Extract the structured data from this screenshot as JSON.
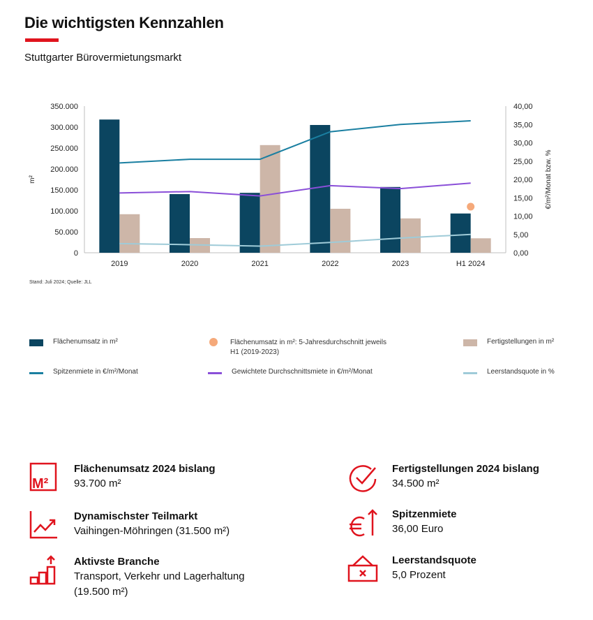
{
  "header": {
    "title": "Die wichtigsten Kennzahlen",
    "subtitle": "Stuttgarter Bürovermietungsmarkt"
  },
  "colors": {
    "accent": "#e0141e",
    "flaechenumsatz": "#0b4560",
    "fertigstellungen": "#cdb6a8",
    "spitzenmiete": "#1a7fa1",
    "durchschnittsmiete": "#8a4fd8",
    "leerstand": "#9fcbd8",
    "avg_dot": "#f5a97a"
  },
  "chart_data": {
    "type": "bar",
    "categories": [
      "2019",
      "2020",
      "2021",
      "2022",
      "2023",
      "H1 2024"
    ],
    "ylabel": "m²",
    "y2label": "€/m²/Monat bzw. %",
    "ylim": [
      0,
      350000
    ],
    "y2lim": [
      0,
      40
    ],
    "yticks": [
      "0",
      "50.000",
      "100.000",
      "150.000",
      "200.000",
      "250.000",
      "300.000",
      "350.000"
    ],
    "y2ticks": [
      "0,00",
      "5,00",
      "10,00",
      "15,00",
      "20,00",
      "25,00",
      "30,00",
      "35,00",
      "40,00"
    ],
    "grid": false,
    "legend_position": "bottom",
    "bars": [
      {
        "name": "Flächenumsatz in m²",
        "values": [
          318000,
          140000,
          143000,
          305000,
          157000,
          93700
        ]
      },
      {
        "name": "Fertigstellungen in m²",
        "values": [
          92000,
          35000,
          257000,
          105000,
          82000,
          34500
        ]
      }
    ],
    "lines": [
      {
        "name": "Spitzenmiete in €/m²/Monat",
        "values": [
          24.5,
          25.5,
          25.5,
          33.0,
          35.0,
          36.0
        ]
      },
      {
        "name": "Gewichtete Durchschnittsmiete in €/m²/Monat",
        "values": [
          16.3,
          16.7,
          15.5,
          18.3,
          17.5,
          19.0
        ]
      },
      {
        "name": "Leerstandsquote in %",
        "values": [
          2.5,
          2.2,
          1.8,
          2.8,
          4.0,
          5.0
        ]
      }
    ],
    "points": [
      {
        "name": "Flächenumsatz in m²: 5-Jahresdurchschnitt jeweils H1 (2019-2023)",
        "category": "H1 2024",
        "value": 110000
      }
    ],
    "source_note": "Stand: Juli 2024; Quelle: JLL"
  },
  "legend": {
    "flaechenumsatz": "Flächenumsatz in m²",
    "avg": "Flächenumsatz in m²: 5-Jahresdurchschnitt jeweils H1 (2019-2023)",
    "fertigstellungen": "Fertigstellungen in m²",
    "spitzenmiete": "Spitzenmiete in €/m²/Monat",
    "durchschnittsmiete": "Gewichtete Durchschnittsmiete in €/m²/Monat",
    "leerstand": "Leerstandsquote in %"
  },
  "kpis": {
    "flaechenumsatz": {
      "title": "Flächenumsatz 2024 bislang",
      "value": "93.700 m²",
      "icon": "m2-icon"
    },
    "teilmarkt": {
      "title": "Dynamischster Teilmarkt",
      "value": "Vaihingen-Möhringen (31.500 m²)",
      "icon": "trend-chart-icon"
    },
    "branche": {
      "title": "Aktivste Branche",
      "value": "Transport, Verkehr und Lagerhaltung\n(19.500 m²)",
      "icon": "rising-steps-icon"
    },
    "fertigstellungen": {
      "title": "Fertigstellungen 2024 bislang",
      "value": "34.500 m²",
      "icon": "check-circle-icon"
    },
    "spitzenmiete": {
      "title": "Spitzenmiete",
      "value": "36,00 Euro",
      "icon": "euro-up-icon"
    },
    "leerstand": {
      "title": "Leerstandsquote",
      "value": "5,0 Prozent",
      "icon": "vacancy-sign-icon"
    }
  }
}
